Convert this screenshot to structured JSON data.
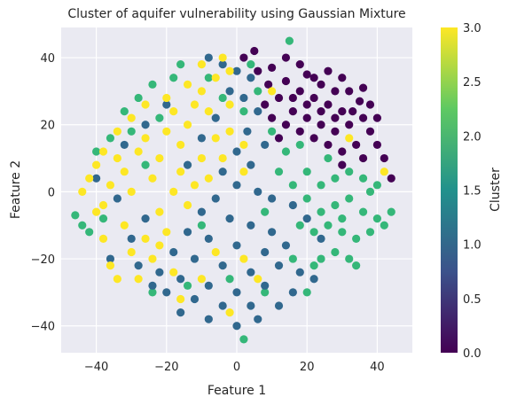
{
  "chart_data": {
    "type": "scatter",
    "title": "Cluster of aquifer vulnerability using Gaussian Mixture",
    "xlabel": "Feature 1",
    "ylabel": "Feature 2",
    "xlim": [
      -50,
      50
    ],
    "ylim": [
      -48,
      49
    ],
    "xticks": [
      -40,
      -20,
      0,
      20,
      40
    ],
    "xtick_labels": [
      "−40",
      "−20",
      "0",
      "20",
      "40"
    ],
    "yticks": [
      -40,
      -20,
      0,
      20,
      40
    ],
    "ytick_labels": [
      "−40",
      "−20",
      "0",
      "20",
      "40"
    ],
    "grid": true,
    "background": "#eaeaf2",
    "colorbar": {
      "label": "Cluster",
      "min": 0.0,
      "max": 3.0,
      "ticks": [
        0.0,
        0.5,
        1.0,
        1.5,
        2.0,
        2.5,
        3.0
      ],
      "tick_labels": [
        "0.0",
        "0.5",
        "1.0",
        "1.5",
        "2.0",
        "2.5",
        "3.0"
      ],
      "colormap": "viridis",
      "colors": [
        "#440154",
        "#3b528b",
        "#21918c",
        "#5ec962",
        "#fde725"
      ]
    },
    "cluster_colors": {
      "0": "#440154",
      "1": "#31688e",
      "2": "#35b779",
      "3": "#fde725"
    },
    "points": [
      {
        "x": 5,
        "y": 42,
        "c": 0
      },
      {
        "x": 10,
        "y": 37,
        "c": 0
      },
      {
        "x": 14,
        "y": 40,
        "c": 0
      },
      {
        "x": 18,
        "y": 38,
        "c": 0
      },
      {
        "x": 20,
        "y": 35,
        "c": 0
      },
      {
        "x": 24,
        "y": 32,
        "c": 0
      },
      {
        "x": 28,
        "y": 30,
        "c": 0
      },
      {
        "x": 32,
        "y": 30,
        "c": 0
      },
      {
        "x": 35,
        "y": 27,
        "c": 0
      },
      {
        "x": 30,
        "y": 24,
        "c": 0
      },
      {
        "x": 26,
        "y": 26,
        "c": 0
      },
      {
        "x": 22,
        "y": 28,
        "c": 0
      },
      {
        "x": 18,
        "y": 30,
        "c": 0
      },
      {
        "x": 14,
        "y": 33,
        "c": 0
      },
      {
        "x": 12,
        "y": 28,
        "c": 0
      },
      {
        "x": 16,
        "y": 24,
        "c": 0
      },
      {
        "x": 20,
        "y": 22,
        "c": 0
      },
      {
        "x": 24,
        "y": 20,
        "c": 0
      },
      {
        "x": 28,
        "y": 18,
        "c": 0
      },
      {
        "x": 32,
        "y": 20,
        "c": 0
      },
      {
        "x": 36,
        "y": 22,
        "c": 0
      },
      {
        "x": 38,
        "y": 18,
        "c": 0
      },
      {
        "x": 40,
        "y": 14,
        "c": 0
      },
      {
        "x": 42,
        "y": 10,
        "c": 0
      },
      {
        "x": 44,
        "y": 4,
        "c": 0
      },
      {
        "x": 34,
        "y": 14,
        "c": 0
      },
      {
        "x": 30,
        "y": 12,
        "c": 0
      },
      {
        "x": 26,
        "y": 14,
        "c": 0
      },
      {
        "x": 22,
        "y": 16,
        "c": 0
      },
      {
        "x": 18,
        "y": 18,
        "c": 0
      },
      {
        "x": 14,
        "y": 20,
        "c": 0
      },
      {
        "x": 10,
        "y": 22,
        "c": 0
      },
      {
        "x": 8,
        "y": 26,
        "c": 0
      },
      {
        "x": 9,
        "y": 32,
        "c": 0
      },
      {
        "x": 6,
        "y": 36,
        "c": 0
      },
      {
        "x": 22,
        "y": 34,
        "c": 0
      },
      {
        "x": 26,
        "y": 36,
        "c": 0
      },
      {
        "x": 30,
        "y": 34,
        "c": 0
      },
      {
        "x": 36,
        "y": 31,
        "c": 0
      },
      {
        "x": 33,
        "y": 24,
        "c": 0
      },
      {
        "x": 38,
        "y": 26,
        "c": 0
      },
      {
        "x": 40,
        "y": 22,
        "c": 0
      },
      {
        "x": 28,
        "y": 22,
        "c": 0
      },
      {
        "x": 24,
        "y": 24,
        "c": 0
      },
      {
        "x": 20,
        "y": 26,
        "c": 0
      },
      {
        "x": 16,
        "y": 28,
        "c": 0
      },
      {
        "x": 30,
        "y": 8,
        "c": 0
      },
      {
        "x": 36,
        "y": 10,
        "c": 0
      },
      {
        "x": 12,
        "y": 16,
        "c": 0
      },
      {
        "x": 2,
        "y": 40,
        "c": 0
      },
      {
        "x": -8,
        "y": 40,
        "c": 1
      },
      {
        "x": -4,
        "y": 38,
        "c": 1
      },
      {
        "x": 0,
        "y": 36,
        "c": 1
      },
      {
        "x": 4,
        "y": 34,
        "c": 1
      },
      {
        "x": 2,
        "y": 28,
        "c": 1
      },
      {
        "x": -2,
        "y": 30,
        "c": 1
      },
      {
        "x": 6,
        "y": 24,
        "c": 1
      },
      {
        "x": 3,
        "y": 18,
        "c": 1
      },
      {
        "x": 8,
        "y": 14,
        "c": 1
      },
      {
        "x": 0,
        "y": 12,
        "c": 1
      },
      {
        "x": 4,
        "y": 8,
        "c": 1
      },
      {
        "x": -4,
        "y": 6,
        "c": 1
      },
      {
        "x": 0,
        "y": 2,
        "c": 1
      },
      {
        "x": 6,
        "y": 0,
        "c": 1
      },
      {
        "x": 10,
        "y": -2,
        "c": 1
      },
      {
        "x": -6,
        "y": -2,
        "c": 1
      },
      {
        "x": -10,
        "y": -6,
        "c": 1
      },
      {
        "x": -2,
        "y": -8,
        "c": 1
      },
      {
        "x": 4,
        "y": -10,
        "c": 1
      },
      {
        "x": 10,
        "y": -12,
        "c": 1
      },
      {
        "x": -14,
        "y": -12,
        "c": 1
      },
      {
        "x": -8,
        "y": -14,
        "c": 1
      },
      {
        "x": 0,
        "y": -16,
        "c": 1
      },
      {
        "x": 8,
        "y": -18,
        "c": 1
      },
      {
        "x": 14,
        "y": -16,
        "c": 1
      },
      {
        "x": -18,
        "y": -18,
        "c": 1
      },
      {
        "x": -12,
        "y": -20,
        "c": 1
      },
      {
        "x": -4,
        "y": -22,
        "c": 1
      },
      {
        "x": 4,
        "y": -24,
        "c": 1
      },
      {
        "x": 12,
        "y": -22,
        "c": 1
      },
      {
        "x": 18,
        "y": -24,
        "c": 1
      },
      {
        "x": -22,
        "y": -24,
        "c": 1
      },
      {
        "x": -16,
        "y": -26,
        "c": 1
      },
      {
        "x": -8,
        "y": -28,
        "c": 1
      },
      {
        "x": 0,
        "y": -30,
        "c": 1
      },
      {
        "x": 8,
        "y": -28,
        "c": 1
      },
      {
        "x": 16,
        "y": -30,
        "c": 1
      },
      {
        "x": -20,
        "y": -30,
        "c": 1
      },
      {
        "x": -12,
        "y": -32,
        "c": 1
      },
      {
        "x": -4,
        "y": -34,
        "c": 1
      },
      {
        "x": 4,
        "y": -34,
        "c": 1
      },
      {
        "x": 12,
        "y": -34,
        "c": 1
      },
      {
        "x": -24,
        "y": -28,
        "c": 1
      },
      {
        "x": -16,
        "y": -36,
        "c": 1
      },
      {
        "x": -8,
        "y": -38,
        "c": 1
      },
      {
        "x": 0,
        "y": -40,
        "c": 1
      },
      {
        "x": 6,
        "y": -38,
        "c": 1
      },
      {
        "x": -28,
        "y": -22,
        "c": 1
      },
      {
        "x": -30,
        "y": -14,
        "c": 1
      },
      {
        "x": -26,
        "y": -8,
        "c": 1
      },
      {
        "x": -34,
        "y": -2,
        "c": 1
      },
      {
        "x": -40,
        "y": 4,
        "c": 1
      },
      {
        "x": -36,
        "y": -20,
        "c": 1
      },
      {
        "x": -32,
        "y": 14,
        "c": 1
      },
      {
        "x": -26,
        "y": 20,
        "c": 1
      },
      {
        "x": -20,
        "y": 26,
        "c": 1
      },
      {
        "x": -14,
        "y": 8,
        "c": 1
      },
      {
        "x": -10,
        "y": 16,
        "c": 1
      },
      {
        "x": 22,
        "y": -26,
        "c": 1
      },
      {
        "x": 20,
        "y": -8,
        "c": 1
      },
      {
        "x": 16,
        "y": -4,
        "c": 1
      },
      {
        "x": 24,
        "y": -14,
        "c": 1
      },
      {
        "x": -6,
        "y": 22,
        "c": 1
      },
      {
        "x": -46,
        "y": -7,
        "c": 2
      },
      {
        "x": -44,
        "y": -10,
        "c": 2
      },
      {
        "x": -42,
        "y": -12,
        "c": 2
      },
      {
        "x": -38,
        "y": -8,
        "c": 2
      },
      {
        "x": -40,
        "y": 12,
        "c": 2
      },
      {
        "x": -36,
        "y": 16,
        "c": 2
      },
      {
        "x": -32,
        "y": 24,
        "c": 2
      },
      {
        "x": -28,
        "y": 28,
        "c": 2
      },
      {
        "x": -24,
        "y": 32,
        "c": 2
      },
      {
        "x": -18,
        "y": 34,
        "c": 2
      },
      {
        "x": -16,
        "y": 38,
        "c": 2
      },
      {
        "x": -8,
        "y": 34,
        "c": 2
      },
      {
        "x": -4,
        "y": 28,
        "c": 2
      },
      {
        "x": 2,
        "y": 24,
        "c": 2
      },
      {
        "x": 6,
        "y": 30,
        "c": 2
      },
      {
        "x": 10,
        "y": 18,
        "c": 2
      },
      {
        "x": 14,
        "y": 12,
        "c": 2
      },
      {
        "x": 18,
        "y": 14,
        "c": 2
      },
      {
        "x": 12,
        "y": 6,
        "c": 2
      },
      {
        "x": 16,
        "y": 2,
        "c": 2
      },
      {
        "x": 20,
        "y": 6,
        "c": 2
      },
      {
        "x": 24,
        "y": 2,
        "c": 2
      },
      {
        "x": 28,
        "y": 4,
        "c": 2
      },
      {
        "x": 32,
        "y": 6,
        "c": 2
      },
      {
        "x": 36,
        "y": 4,
        "c": 2
      },
      {
        "x": 40,
        "y": 2,
        "c": 2
      },
      {
        "x": 44,
        "y": -6,
        "c": 2
      },
      {
        "x": 40,
        "y": -8,
        "c": 2
      },
      {
        "x": 36,
        "y": -6,
        "c": 2
      },
      {
        "x": 32,
        "y": -2,
        "c": 2
      },
      {
        "x": 28,
        "y": -4,
        "c": 2
      },
      {
        "x": 24,
        "y": -6,
        "c": 2
      },
      {
        "x": 20,
        "y": -2,
        "c": 2
      },
      {
        "x": 18,
        "y": -10,
        "c": 2
      },
      {
        "x": 22,
        "y": -12,
        "c": 2
      },
      {
        "x": 26,
        "y": -10,
        "c": 2
      },
      {
        "x": 30,
        "y": -12,
        "c": 2
      },
      {
        "x": 34,
        "y": -14,
        "c": 2
      },
      {
        "x": 38,
        "y": -12,
        "c": 2
      },
      {
        "x": 42,
        "y": -10,
        "c": 2
      },
      {
        "x": 28,
        "y": -18,
        "c": 2
      },
      {
        "x": 24,
        "y": -20,
        "c": 2
      },
      {
        "x": 32,
        "y": -20,
        "c": 2
      },
      {
        "x": 34,
        "y": -22,
        "c": 2
      },
      {
        "x": 22,
        "y": -22,
        "c": 2
      },
      {
        "x": 20,
        "y": -30,
        "c": 2
      },
      {
        "x": 8,
        "y": -30,
        "c": 2
      },
      {
        "x": 2,
        "y": -44,
        "c": 2
      },
      {
        "x": -24,
        "y": -30,
        "c": 2
      },
      {
        "x": -14,
        "y": -28,
        "c": 2
      },
      {
        "x": -26,
        "y": 8,
        "c": 2
      },
      {
        "x": -22,
        "y": 22,
        "c": 2
      },
      {
        "x": -30,
        "y": 18,
        "c": 2
      },
      {
        "x": 4,
        "y": 38,
        "c": 2
      },
      {
        "x": 15,
        "y": 45,
        "c": 2
      },
      {
        "x": -10,
        "y": -10,
        "c": 2
      },
      {
        "x": 8,
        "y": -6,
        "c": 2
      },
      {
        "x": -2,
        "y": -26,
        "c": 2
      },
      {
        "x": 16,
        "y": -20,
        "c": 2
      },
      {
        "x": 26,
        "y": 10,
        "c": 2
      },
      {
        "x": 30,
        "y": -8,
        "c": 2
      },
      {
        "x": 38,
        "y": 0,
        "c": 2
      },
      {
        "x": -44,
        "y": 0,
        "c": 3
      },
      {
        "x": -42,
        "y": 4,
        "c": 3
      },
      {
        "x": -40,
        "y": 8,
        "c": 3
      },
      {
        "x": -38,
        "y": -4,
        "c": 3
      },
      {
        "x": -36,
        "y": 2,
        "c": 3
      },
      {
        "x": -34,
        "y": 10,
        "c": 3
      },
      {
        "x": -32,
        "y": 6,
        "c": 3
      },
      {
        "x": -30,
        "y": 0,
        "c": 3
      },
      {
        "x": -28,
        "y": 12,
        "c": 3
      },
      {
        "x": -26,
        "y": 16,
        "c": 3
      },
      {
        "x": -24,
        "y": 4,
        "c": 3
      },
      {
        "x": -22,
        "y": 10,
        "c": 3
      },
      {
        "x": -20,
        "y": 18,
        "c": 3
      },
      {
        "x": -18,
        "y": 24,
        "c": 3
      },
      {
        "x": -16,
        "y": 14,
        "c": 3
      },
      {
        "x": -14,
        "y": 20,
        "c": 3
      },
      {
        "x": -12,
        "y": 26,
        "c": 3
      },
      {
        "x": -10,
        "y": 30,
        "c": 3
      },
      {
        "x": -8,
        "y": 24,
        "c": 3
      },
      {
        "x": -6,
        "y": 16,
        "c": 3
      },
      {
        "x": -4,
        "y": 10,
        "c": 3
      },
      {
        "x": -2,
        "y": 18,
        "c": 3
      },
      {
        "x": -6,
        "y": 34,
        "c": 3
      },
      {
        "x": -2,
        "y": 36,
        "c": 3
      },
      {
        "x": -10,
        "y": 38,
        "c": 3
      },
      {
        "x": -14,
        "y": 32,
        "c": 3
      },
      {
        "x": -20,
        "y": 28,
        "c": 3
      },
      {
        "x": -26,
        "y": 26,
        "c": 3
      },
      {
        "x": -30,
        "y": 22,
        "c": 3
      },
      {
        "x": -34,
        "y": 18,
        "c": 3
      },
      {
        "x": -38,
        "y": 12,
        "c": 3
      },
      {
        "x": -40,
        "y": -6,
        "c": 3
      },
      {
        "x": -38,
        "y": -14,
        "c": 3
      },
      {
        "x": -36,
        "y": -22,
        "c": 3
      },
      {
        "x": -34,
        "y": -26,
        "c": 3
      },
      {
        "x": -30,
        "y": -18,
        "c": 3
      },
      {
        "x": -28,
        "y": -26,
        "c": 3
      },
      {
        "x": -26,
        "y": -14,
        "c": 3
      },
      {
        "x": -24,
        "y": -20,
        "c": 3
      },
      {
        "x": -22,
        "y": -6,
        "c": 3
      },
      {
        "x": -20,
        "y": -12,
        "c": 3
      },
      {
        "x": -18,
        "y": 0,
        "c": 3
      },
      {
        "x": -16,
        "y": 6,
        "c": 3
      },
      {
        "x": -14,
        "y": -4,
        "c": 3
      },
      {
        "x": -12,
        "y": 2,
        "c": 3
      },
      {
        "x": -10,
        "y": 10,
        "c": 3
      },
      {
        "x": -8,
        "y": 4,
        "c": 3
      },
      {
        "x": -2,
        "y": 26,
        "c": 3
      },
      {
        "x": 2,
        "y": 14,
        "c": 3
      },
      {
        "x": -18,
        "y": -24,
        "c": 3
      },
      {
        "x": -6,
        "y": -18,
        "c": 3
      },
      {
        "x": 2,
        "y": -20,
        "c": 3
      },
      {
        "x": -10,
        "y": -26,
        "c": 3
      },
      {
        "x": -2,
        "y": -36,
        "c": 3
      },
      {
        "x": 6,
        "y": -26,
        "c": 3
      },
      {
        "x": -16,
        "y": -32,
        "c": 3
      },
      {
        "x": -22,
        "y": -16,
        "c": 3
      },
      {
        "x": -32,
        "y": -10,
        "c": 3
      },
      {
        "x": 10,
        "y": 30,
        "c": 3
      },
      {
        "x": 32,
        "y": 16,
        "c": 3
      },
      {
        "x": 42,
        "y": 6,
        "c": 3
      },
      {
        "x": 2,
        "y": 6,
        "c": 3
      },
      {
        "x": -4,
        "y": 40,
        "c": 3
      }
    ]
  }
}
